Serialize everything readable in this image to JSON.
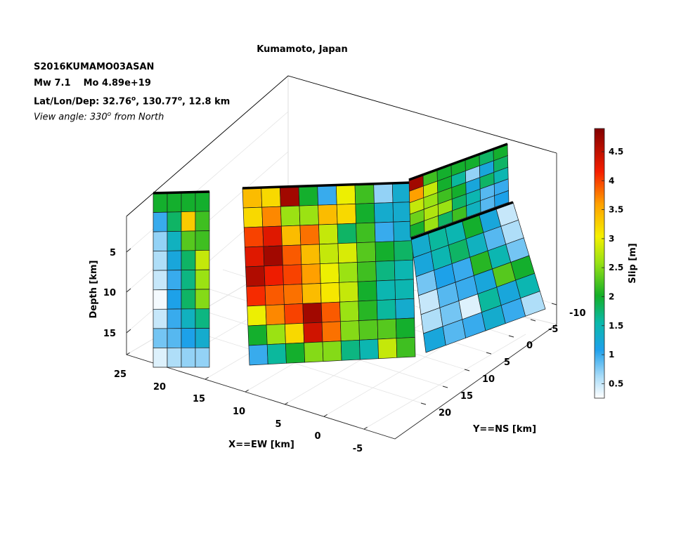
{
  "info": {
    "event_id": "S2016KUMAMO03ASAN",
    "mw_label": "Mw 7.1",
    "mo_label": "Mo 4.89e+19",
    "location_prefix": "Lat/Lon/Dep: 32.76",
    "deg": "o",
    "lon_part": ", 130.77",
    "dep_part": ", 12.8 km",
    "view_prefix": "View angle: 330",
    "view_suffix": " from North"
  },
  "chart_data": {
    "type": "heatmap",
    "title": "Kumamoto, Japan",
    "xlabel": "X==EW [km]",
    "ylabel": "Y==NS [km]",
    "zlabel": "Depth [km]",
    "x_ticks": [
      "25",
      "20",
      "15",
      "10",
      "5",
      "0",
      "-5"
    ],
    "y_ticks": [
      "-10",
      "-5",
      "0",
      "5",
      "10",
      "15",
      "20"
    ],
    "z_ticks": [
      "5",
      "10",
      "15"
    ],
    "colorbar": {
      "label": "Slip [m]",
      "ticks": [
        "0.5",
        "1",
        "1.5",
        "2",
        "2.5",
        "3",
        "3.5",
        "4",
        "4.5"
      ],
      "range": [
        0.25,
        4.9
      ]
    },
    "segments": [
      {
        "rows": 9,
        "cols": 4,
        "slip": [
          [
            2.0,
            2.0,
            2.0,
            2.0
          ],
          [
            1.0,
            1.8,
            3.3,
            2.2
          ],
          [
            0.7,
            1.4,
            2.3,
            2.2
          ],
          [
            0.6,
            1.2,
            1.8,
            2.8
          ],
          [
            0.5,
            1.0,
            1.7,
            2.6
          ],
          [
            0.3,
            1.1,
            1.8,
            2.5
          ],
          [
            0.5,
            1.0,
            1.4,
            1.7
          ],
          [
            0.8,
            0.9,
            1.1,
            1.3
          ],
          [
            0.4,
            0.6,
            0.7,
            0.7
          ]
        ]
      },
      {
        "rows": 9,
        "cols": 9,
        "slip": [
          [
            3.4,
            3.2,
            4.7,
            2.0,
            1.0,
            3.0,
            2.2,
            0.7,
            1.3
          ],
          [
            3.2,
            3.7,
            2.6,
            2.6,
            3.4,
            3.2,
            2.0,
            1.3,
            1.3
          ],
          [
            4.0,
            4.3,
            3.4,
            3.8,
            2.8,
            1.8,
            2.2,
            1.0,
            1.3
          ],
          [
            4.3,
            4.7,
            3.9,
            3.4,
            2.8,
            2.9,
            2.3,
            2.0,
            1.8
          ],
          [
            4.6,
            4.2,
            4.0,
            3.6,
            3.0,
            2.6,
            2.2,
            1.7,
            1.5
          ],
          [
            4.1,
            3.9,
            3.8,
            3.4,
            3.1,
            2.8,
            2.0,
            1.5,
            1.5
          ],
          [
            3.0,
            3.7,
            4.0,
            4.7,
            3.9,
            2.6,
            2.1,
            1.6,
            1.3
          ],
          [
            2.0,
            2.6,
            3.2,
            4.4,
            3.8,
            2.5,
            2.3,
            2.3,
            2.0
          ],
          [
            1.0,
            1.6,
            2.0,
            2.5,
            2.5,
            1.7,
            1.5,
            2.8,
            2.2
          ]
        ]
      },
      {
        "rows": 5,
        "cols": 7,
        "slip": [
          [
            4.7,
            2.2,
            2.0,
            2.0,
            2.0,
            1.8,
            2.0
          ],
          [
            3.6,
            2.8,
            2.0,
            1.6,
            0.7,
            1.2,
            1.8
          ],
          [
            2.8,
            2.6,
            2.2,
            2.0,
            1.2,
            1.8,
            1.5
          ],
          [
            2.4,
            2.7,
            2.6,
            1.8,
            1.5,
            0.9,
            1.0
          ],
          [
            2.0,
            2.6,
            1.8,
            2.2,
            1.4,
            0.9,
            1.1
          ]
        ]
      },
      {
        "rows": 6,
        "cols": 6,
        "slip": [
          [
            1.3,
            1.6,
            1.5,
            2.0,
            1.2,
            0.5
          ],
          [
            1.2,
            1.5,
            1.8,
            1.4,
            0.9,
            0.6
          ],
          [
            0.8,
            1.1,
            1.0,
            2.1,
            1.5,
            0.8
          ],
          [
            0.5,
            0.9,
            1.0,
            1.2,
            2.3,
            2.0
          ],
          [
            0.6,
            0.8,
            0.4,
            1.6,
            1.2,
            1.5
          ],
          [
            1.2,
            0.9,
            1.0,
            1.3,
            1.0,
            0.6
          ]
        ]
      }
    ]
  }
}
